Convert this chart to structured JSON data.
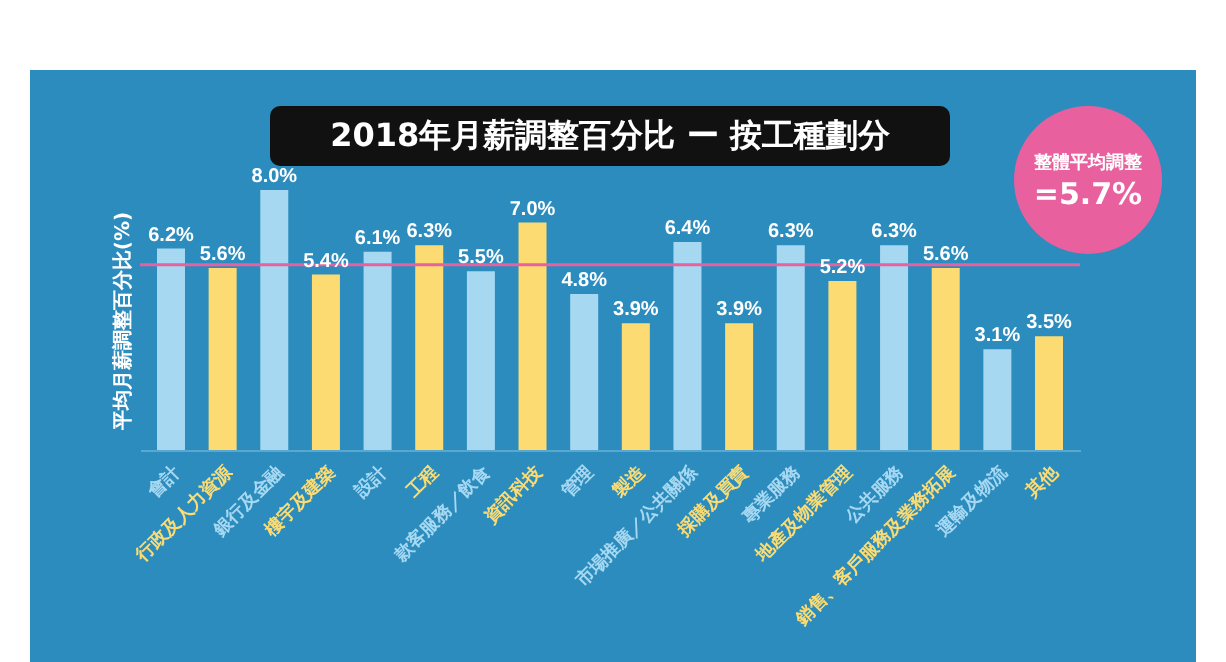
{
  "chart_data": {
    "type": "bar",
    "title": "2018年月薪調整百分比 ー 按工種劃分",
    "ylabel": "平均月薪調整百分比(%)",
    "categories": [
      "會計",
      "行政及人力資源",
      "銀行及金融",
      "樓宇及建築",
      "設計",
      "工程",
      "款客服務／飲食",
      "資訊科技",
      "管理",
      "製造",
      "市場推廣／公共關係",
      "採購及買賣",
      "專業服務",
      "地產及物業管理",
      "公共服務",
      "銷售、客戶服務及業務拓展",
      "運輸及物流",
      "其他"
    ],
    "values": [
      6.2,
      5.6,
      8.0,
      5.4,
      6.1,
      6.3,
      5.5,
      7.0,
      4.8,
      3.9,
      6.4,
      3.9,
      6.3,
      5.2,
      6.3,
      5.6,
      3.1,
      3.5
    ],
    "value_labels": [
      "6.2%",
      "5.6%",
      "8.0%",
      "5.4%",
      "6.1%",
      "6.3%",
      "5.5%",
      "7.0%",
      "4.8%",
      "3.9%",
      "6.4%",
      "3.9%",
      "6.3%",
      "5.2%",
      "6.3%",
      "5.6%",
      "3.1%",
      "3.5%"
    ],
    "colors": [
      "#a6d8f2",
      "#fcdc72",
      "#a6d8f2",
      "#fcdc72",
      "#a6d8f2",
      "#fcdc72",
      "#a6d8f2",
      "#fcdc72",
      "#a6d8f2",
      "#fcdc72",
      "#a6d8f2",
      "#fcdc72",
      "#a6d8f2",
      "#fcdc72",
      "#a6d8f2",
      "#fcdc72",
      "#a6d8f2",
      "#fcdc72"
    ],
    "tick_labels": "x",
    "ref_lines": [
      {
        "axis": "y",
        "value": 5.7,
        "label": "整體平均調整 =5.7%",
        "color": "#e8609e"
      }
    ]
  }
}
